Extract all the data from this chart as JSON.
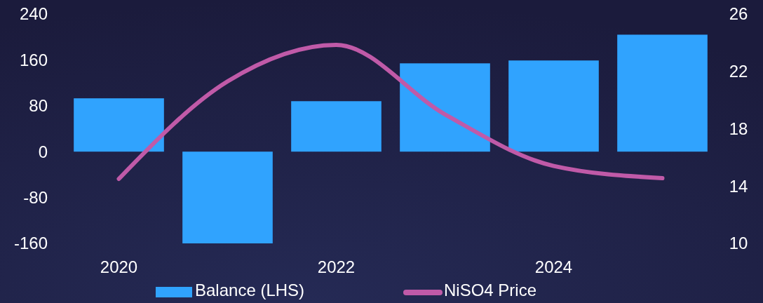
{
  "chart_data": {
    "type": "bar",
    "categories": [
      "2020",
      null,
      "2022",
      null,
      "2024",
      null
    ],
    "series": [
      {
        "name": "Balance (LHS)",
        "color": "#30a3fe",
        "values": [
          93,
          -160,
          88,
          154,
          159,
          204
        ]
      },
      {
        "name": "NiSO4 Price",
        "type": "line",
        "axis": "y2",
        "color": "#c05aa8",
        "values": [
          14.5,
          21.3,
          23.85,
          19.0,
          15.4,
          14.55
        ]
      }
    ],
    "ylim": [
      -160,
      240
    ],
    "yticks": [
      -160,
      -80,
      0,
      80,
      160,
      240
    ],
    "y2lim": [
      10,
      26
    ],
    "y2ticks": [
      10,
      14,
      18,
      22,
      26
    ],
    "grid": false,
    "legend": "bottom",
    "marker": "none",
    "line_style": "solid"
  }
}
